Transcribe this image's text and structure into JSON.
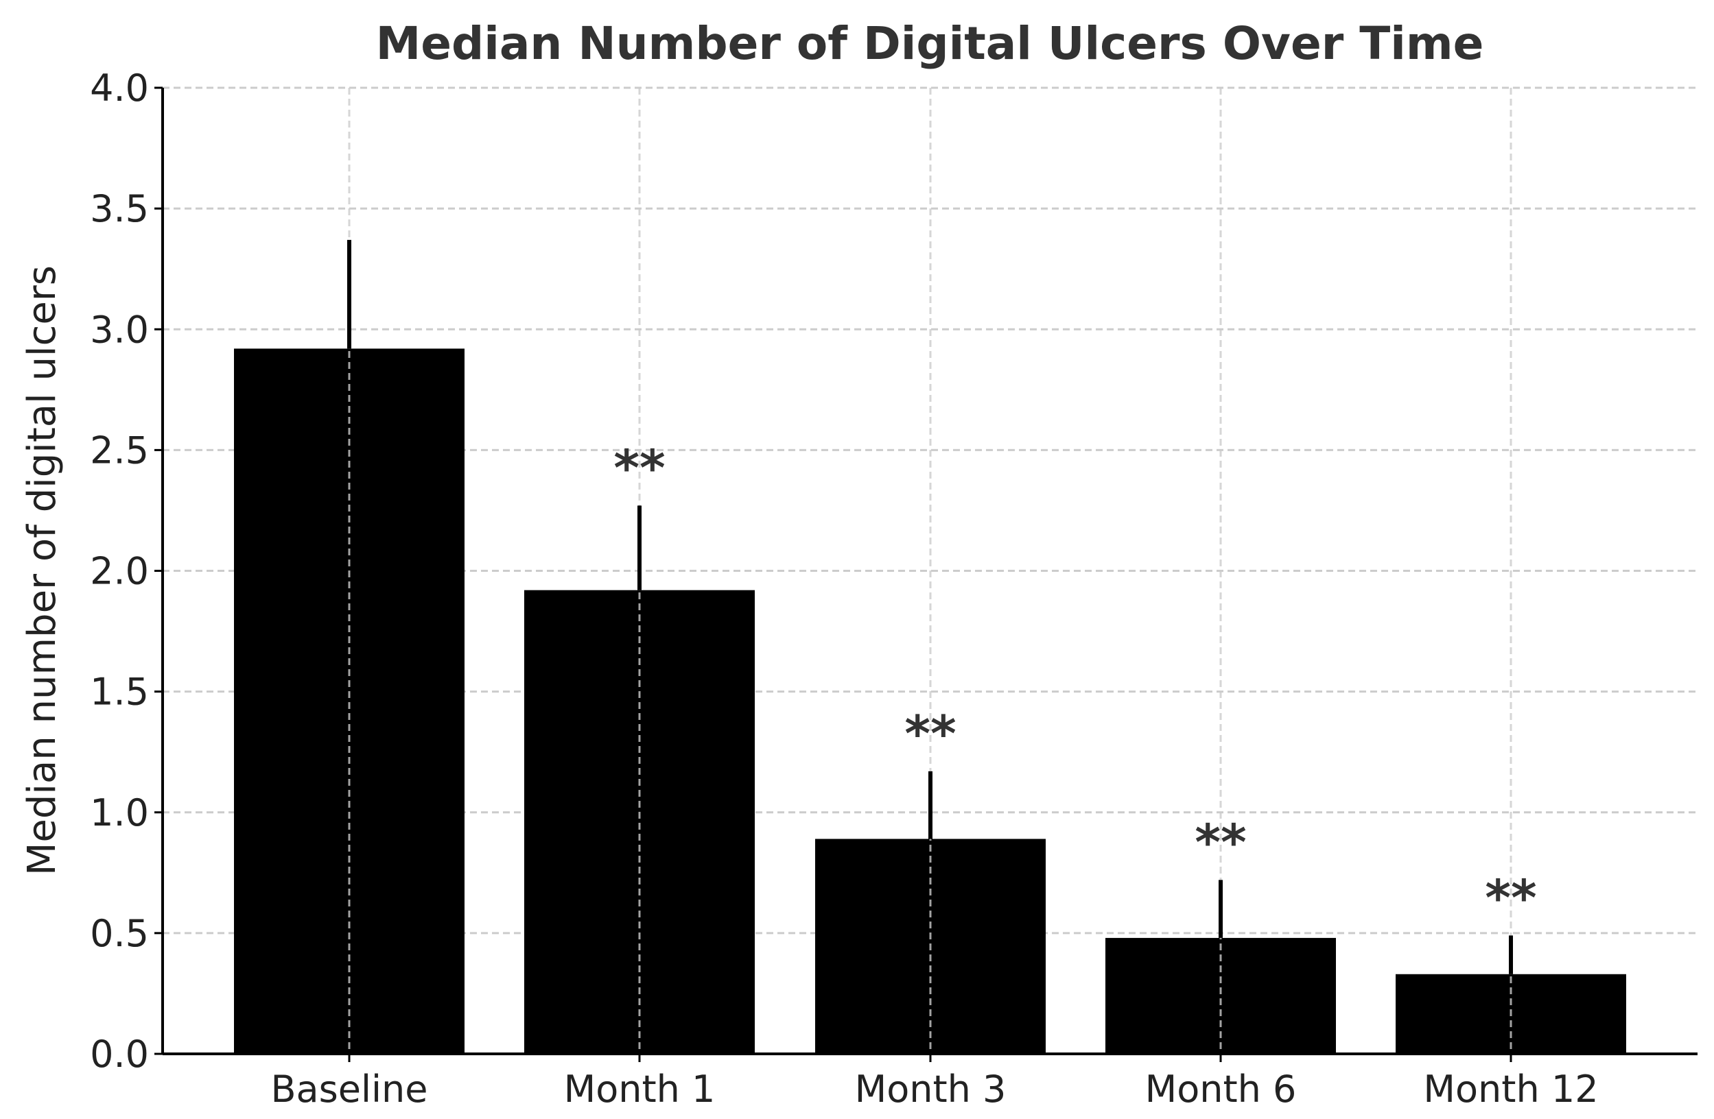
{
  "chart_data": {
    "type": "bar",
    "title": "Median Number of Digital Ulcers Over Time",
    "xlabel": "",
    "ylabel": "Median number of digital ulcers",
    "categories": [
      "Baseline",
      "Month 1",
      "Month 3",
      "Month 6",
      "Month 12"
    ],
    "values": [
      2.92,
      1.92,
      0.89,
      0.48,
      0.33
    ],
    "error_plus": [
      0.45,
      0.35,
      0.28,
      0.24,
      0.16
    ],
    "annotations": [
      "",
      "**",
      "**",
      "**",
      "**"
    ],
    "ylim": [
      0,
      4.0
    ],
    "yticks": [
      "0.0",
      "0.5",
      "1.0",
      "1.5",
      "2.0",
      "2.5",
      "3.0",
      "3.5",
      "4.0"
    ],
    "grid": true,
    "bar_color": "#000000",
    "grid_color": "#cccccc"
  }
}
